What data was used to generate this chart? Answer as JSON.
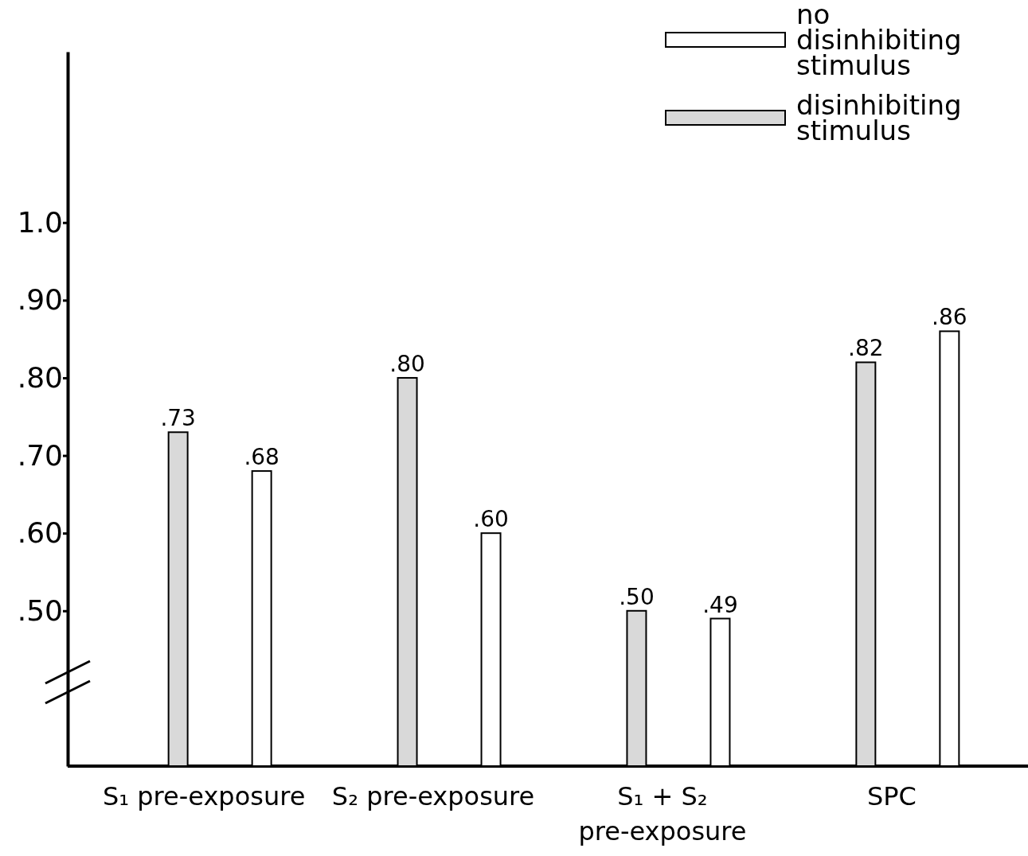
{
  "chart_data": {
    "type": "bar",
    "categories": [
      "S₁ pre-exposure",
      "S₂ pre-exposure",
      "S₁ + S₂ pre-exposure",
      "SPC"
    ],
    "series": [
      {
        "name": "no disinhibiting stimulus",
        "color": "#ffffff",
        "values": [
          0.68,
          0.6,
          0.49,
          0.86
        ],
        "value_labels": [
          ".68",
          ".60",
          ".49",
          ".86"
        ]
      },
      {
        "name": "disinhibiting stimulus",
        "color": "#d9d9d9",
        "values": [
          0.73,
          0.8,
          0.5,
          0.82
        ],
        "value_labels": [
          ".73",
          ".80",
          ".50",
          ".82"
        ]
      }
    ],
    "ylim": [
      0.3,
      1.22
    ],
    "yticks": [
      {
        "value": 0.5,
        "label": ".50"
      },
      {
        "value": 0.6,
        "label": ".60"
      },
      {
        "value": 0.7,
        "label": ".70"
      },
      {
        "value": 0.8,
        "label": ".80"
      },
      {
        "value": 0.9,
        "label": ".90"
      },
      {
        "value": 1.0,
        "label": "1.0"
      }
    ],
    "grid": false,
    "legend": "top right"
  }
}
